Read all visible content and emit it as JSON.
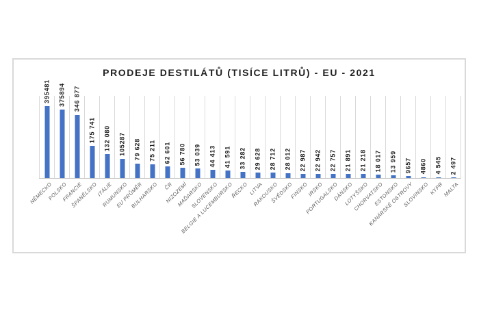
{
  "chart_data": {
    "type": "bar",
    "title": "PRODEJE DESTILÁTŮ (TISÍCE LITRŮ) - EU - 2021",
    "categories": [
      "NĚMECKO",
      "POLSKO",
      "FRANCIE",
      "ŠPANĚLSKO",
      "ITÁLIE",
      "RUMUNSKO",
      "EU PRŮMĚR",
      "BULHARSKO",
      "ČR",
      "NIZOZEMÍ",
      "MAĎARSKO",
      "SLOVENSKO",
      "BELGIE A LUCEMBURSKO",
      "ŘECKO",
      "LITVA",
      "RAKOUSKO",
      "ŠVÉDSKO",
      "FINSKO",
      "IRSKO",
      "PORTUGALSKO",
      "DÁNSKO",
      "LOTYŠSKO",
      "CHORVATSKO",
      "ESTONSKO",
      "KANÁRSKÉ OSTROVY",
      "SLOVINSKO",
      "KYPR",
      "MALTA"
    ],
    "values": [
      395481,
      375894,
      346877,
      175741,
      132080,
      105287,
      79628,
      75211,
      62601,
      56780,
      53039,
      44413,
      41591,
      33282,
      29628,
      28712,
      28012,
      22987,
      22942,
      22757,
      21891,
      21218,
      18017,
      13959,
      9657,
      4860,
      4545,
      2497
    ],
    "value_labels": [
      "395481",
      "375894",
      "346 877",
      "175 741",
      "132 080",
      "105287",
      "79 628",
      "75 211",
      "62 601",
      "56 780",
      "53 039",
      "44 413",
      "41 591",
      "33 282",
      "29 628",
      "28 712",
      "28 012",
      "22 987",
      "22 942",
      "22 757",
      "21 891",
      "21 218",
      "18 017",
      "13 959",
      "9657",
      "4860",
      "4 545",
      "2 497"
    ],
    "xlabel": "",
    "ylabel": "",
    "ylim": [
      0,
      450000
    ],
    "value_axis_visible": false,
    "grid": "vertical category separators",
    "legend_position": "none",
    "data_label_rotation": "vertical (bottom-to-top), above bar",
    "category_label_rotation": 45,
    "bar_color": "#4472c4",
    "gridline_color": "#d9d9d9",
    "border_color": "#d9d9d9",
    "label_color": "#1f1f1f",
    "category_label_color": "#595959"
  }
}
